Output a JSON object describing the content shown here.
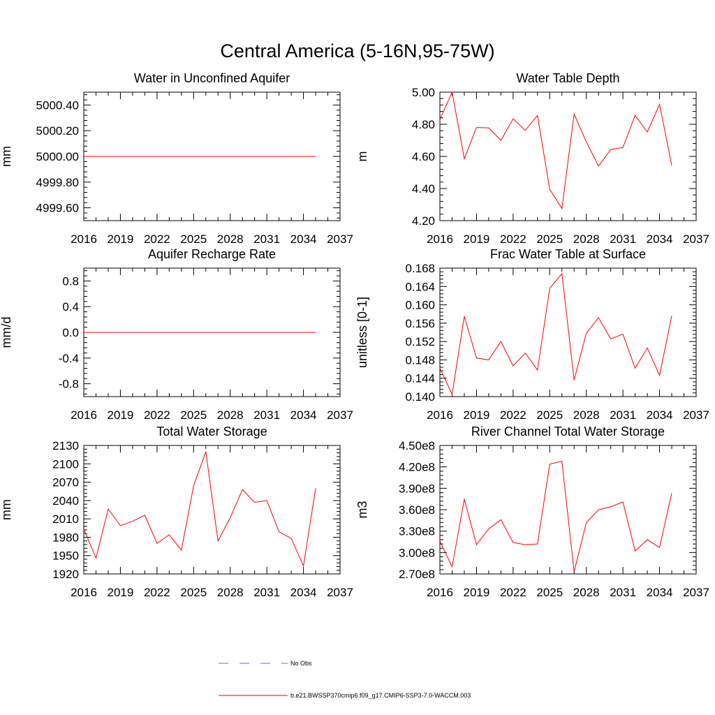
{
  "title": "Central America (5-16N,95-75W)",
  "colors": {
    "model": "#ff0000",
    "obs": "#6b6bb8",
    "axis": "#000000",
    "background": "#ffffff"
  },
  "legend": {
    "obs_label": "No Obs",
    "model_label": "b.e21.BWSSP370cmip6.f09_g17.CMIP6-SSP3-7.0-WACCM.003"
  },
  "chart_data": [
    {
      "type": "line",
      "title": "Water in Unconfined Aquifer",
      "ylabel": "mm",
      "xlim": [
        2016,
        2037
      ],
      "ylim": [
        4999.5,
        5000.5
      ],
      "xticks": [
        2016,
        2019,
        2022,
        2025,
        2028,
        2031,
        2034,
        2037
      ],
      "xtick_labels": [
        "2016",
        "2019",
        "2022",
        "2025",
        "2028",
        "2031",
        "2034",
        "2037"
      ],
      "yticks": [
        4999.6,
        4999.8,
        5000.0,
        5000.2,
        5000.4
      ],
      "ytick_labels": [
        "4999.60",
        "4999.80",
        "5000.00",
        "5000.20",
        "5000.40"
      ],
      "x": [
        2016,
        2017,
        2018,
        2019,
        2020,
        2021,
        2022,
        2023,
        2024,
        2025,
        2026,
        2027,
        2028,
        2029,
        2030,
        2031,
        2032,
        2033,
        2034,
        2035
      ],
      "series": [
        {
          "name": "b.e21.BWSSP370cmip6.f09_g17.CMIP6-SSP3-7.0-WACCM.003",
          "values": [
            5000,
            5000,
            5000,
            5000,
            5000,
            5000,
            5000,
            5000,
            5000,
            5000,
            5000,
            5000,
            5000,
            5000,
            5000,
            5000,
            5000,
            5000,
            5000,
            5000
          ]
        }
      ]
    },
    {
      "type": "line",
      "title": "Water Table Depth",
      "ylabel": "m",
      "xlim": [
        2016,
        2037
      ],
      "ylim": [
        4.2,
        5.0
      ],
      "xticks": [
        2016,
        2019,
        2022,
        2025,
        2028,
        2031,
        2034,
        2037
      ],
      "xtick_labels": [
        "2016",
        "2019",
        "2022",
        "2025",
        "2028",
        "2031",
        "2034",
        "2037"
      ],
      "yticks": [
        4.2,
        4.4,
        4.6,
        4.8,
        5.0
      ],
      "ytick_labels": [
        "4.20",
        "4.40",
        "4.60",
        "4.80",
        "5.00"
      ],
      "x": [
        2016,
        2017,
        2018,
        2019,
        2020,
        2021,
        2022,
        2023,
        2024,
        2025,
        2026,
        2027,
        2028,
        2029,
        2030,
        2031,
        2032,
        2033,
        2034,
        2035
      ],
      "series": [
        {
          "name": "b.e21.BWSSP370cmip6.f09_g17.CMIP6-SSP3-7.0-WACCM.003",
          "values": [
            4.83,
            5.0,
            4.585,
            4.78,
            4.778,
            4.7,
            4.835,
            4.762,
            4.855,
            4.395,
            4.275,
            4.863,
            4.69,
            4.54,
            4.643,
            4.655,
            4.855,
            4.752,
            4.925,
            4.545
          ]
        }
      ]
    },
    {
      "type": "line",
      "title": "Aquifer Recharge Rate",
      "ylabel": "mm/d",
      "xlim": [
        2016,
        2037
      ],
      "ylim": [
        -1.0,
        1.0
      ],
      "xticks": [
        2016,
        2019,
        2022,
        2025,
        2028,
        2031,
        2034,
        2037
      ],
      "xtick_labels": [
        "2016",
        "2019",
        "2022",
        "2025",
        "2028",
        "2031",
        "2034",
        "2037"
      ],
      "yticks": [
        -0.8,
        -0.4,
        0.0,
        0.4,
        0.8
      ],
      "ytick_labels": [
        "-0.8",
        "-0.4",
        "0.0",
        "0.4",
        "0.8"
      ],
      "x": [
        2016,
        2017,
        2018,
        2019,
        2020,
        2021,
        2022,
        2023,
        2024,
        2025,
        2026,
        2027,
        2028,
        2029,
        2030,
        2031,
        2032,
        2033,
        2034,
        2035
      ],
      "series": [
        {
          "name": "b.e21.BWSSP370cmip6.f09_g17.CMIP6-SSP3-7.0-WACCM.003",
          "values": [
            0,
            0,
            0,
            0,
            0,
            0,
            0,
            0,
            0,
            0,
            0,
            0,
            0,
            0,
            0,
            0,
            0,
            0,
            0,
            0
          ]
        }
      ]
    },
    {
      "type": "line",
      "title": "Frac Water Table at Surface",
      "ylabel": "unitless [0-1]",
      "xlim": [
        2016,
        2037
      ],
      "ylim": [
        0.14,
        0.168
      ],
      "xticks": [
        2016,
        2019,
        2022,
        2025,
        2028,
        2031,
        2034,
        2037
      ],
      "xtick_labels": [
        "2016",
        "2019",
        "2022",
        "2025",
        "2028",
        "2031",
        "2034",
        "2037"
      ],
      "yticks": [
        0.14,
        0.144,
        0.148,
        0.152,
        0.156,
        0.16,
        0.164,
        0.168
      ],
      "ytick_labels": [
        "0.140",
        "0.144",
        "0.148",
        "0.152",
        "0.156",
        "0.160",
        "0.164",
        "0.168"
      ],
      "x": [
        2016,
        2017,
        2018,
        2019,
        2020,
        2021,
        2022,
        2023,
        2024,
        2025,
        2026,
        2027,
        2028,
        2029,
        2030,
        2031,
        2032,
        2033,
        2034,
        2035
      ],
      "series": [
        {
          "name": "b.e21.BWSSP370cmip6.f09_g17.CMIP6-SSP3-7.0-WACCM.003",
          "values": [
            0.1462,
            0.1405,
            0.1575,
            0.1484,
            0.148,
            0.152,
            0.1467,
            0.1495,
            0.1458,
            0.1636,
            0.1668,
            0.1436,
            0.1538,
            0.1572,
            0.1526,
            0.1536,
            0.1462,
            0.1506,
            0.1446,
            0.1576
          ]
        }
      ]
    },
    {
      "type": "line",
      "title": "Total Water Storage",
      "ylabel": "mm",
      "xlim": [
        2016,
        2037
      ],
      "ylim": [
        1920,
        2130
      ],
      "xticks": [
        2016,
        2019,
        2022,
        2025,
        2028,
        2031,
        2034,
        2037
      ],
      "xtick_labels": [
        "2016",
        "2019",
        "2022",
        "2025",
        "2028",
        "2031",
        "2034",
        "2037"
      ],
      "yticks": [
        1920,
        1950,
        1980,
        2010,
        2040,
        2070,
        2100,
        2130
      ],
      "ytick_labels": [
        "1920",
        "1950",
        "1980",
        "2010",
        "2040",
        "2070",
        "2100",
        "2130"
      ],
      "x": [
        2016,
        2017,
        2018,
        2019,
        2020,
        2021,
        2022,
        2023,
        2024,
        2025,
        2026,
        2027,
        2028,
        2029,
        2030,
        2031,
        2032,
        2033,
        2034,
        2035
      ],
      "series": [
        {
          "name": "b.e21.BWSSP370cmip6.f09_g17.CMIP6-SSP3-7.0-WACCM.003",
          "values": [
            1993,
            1946,
            2026,
            1999,
            2006,
            2016,
            1970,
            1984,
            1959,
            2064,
            2120,
            1974,
            2012,
            2058,
            2037,
            2040,
            1989,
            1978,
            1933,
            2060
          ]
        }
      ]
    },
    {
      "type": "line",
      "title": "River Channel Total Water Storage",
      "ylabel": "m3",
      "xlim": [
        2016,
        2037
      ],
      "ylim": [
        270000000,
        450000000
      ],
      "xticks": [
        2016,
        2019,
        2022,
        2025,
        2028,
        2031,
        2034,
        2037
      ],
      "xtick_labels": [
        "2016",
        "2019",
        "2022",
        "2025",
        "2028",
        "2031",
        "2034",
        "2037"
      ],
      "yticks": [
        270000000,
        300000000,
        330000000,
        360000000,
        390000000,
        420000000,
        450000000
      ],
      "ytick_labels": [
        "2.70e8",
        "3.00e8",
        "3.30e8",
        "3.60e8",
        "3.90e8",
        "4.20e8",
        "4.50e8"
      ],
      "x": [
        2016,
        2017,
        2018,
        2019,
        2020,
        2021,
        2022,
        2023,
        2024,
        2025,
        2026,
        2027,
        2028,
        2029,
        2030,
        2031,
        2032,
        2033,
        2034,
        2035
      ],
      "series": [
        {
          "name": "b.e21.BWSSP370cmip6.f09_g17.CMIP6-SSP3-7.0-WACCM.003",
          "values": [
            316000000,
            280000000,
            375000000,
            311000000,
            333000000,
            346000000,
            314000000,
            311000000,
            312000000,
            424000000,
            428000000,
            273000000,
            342000000,
            360000000,
            364000000,
            371000000,
            302000000,
            318000000,
            307000000,
            383000000
          ]
        }
      ]
    }
  ]
}
